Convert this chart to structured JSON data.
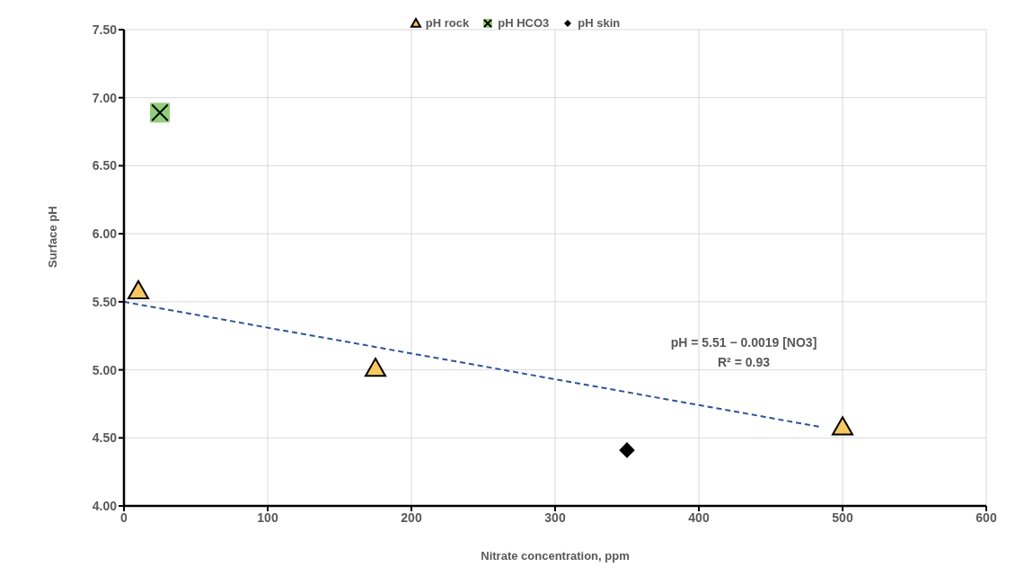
{
  "chart_data": {
    "type": "scatter",
    "xlabel": "Nitrate concentration, ppm",
    "ylabel": "Surface pH",
    "xlim": [
      0,
      600
    ],
    "xticks": [
      0,
      100,
      200,
      300,
      400,
      500,
      600
    ],
    "ylim": [
      4,
      7.5
    ],
    "yticks": [
      {
        "value": 4,
        "label": "4.00"
      },
      {
        "value": 4.5,
        "label": "4.50"
      },
      {
        "value": 5,
        "label": "5.00"
      },
      {
        "value": 5.5,
        "label": "5.50"
      },
      {
        "value": 6,
        "label": "6.00"
      },
      {
        "value": 6.5,
        "label": "6.50"
      },
      {
        "value": 7,
        "label": "7.00"
      },
      {
        "value": 7.5,
        "label": "7.50"
      }
    ],
    "grid": true,
    "legend": "top",
    "series": [
      {
        "name": "pH rock",
        "color": "#f6c85f",
        "marker": "triangle",
        "x": [
          10,
          175,
          500
        ],
        "values": [
          5.58,
          5.01,
          4.58
        ]
      },
      {
        "name": "pH  HCO3",
        "color": "#8fcf7a",
        "marker": "square",
        "x": [
          25
        ],
        "values": [
          6.89
        ]
      },
      {
        "name": "pH skin",
        "color": "#000000",
        "marker": "diamond",
        "x": [
          350
        ],
        "values": [
          4.41
        ]
      },
      {
        "type": "line",
        "color": "#2f5597",
        "line_style": "dashed",
        "marker": "none",
        "x": [
          0,
          485
        ],
        "values": [
          5.5,
          4.58
        ]
      }
    ],
    "annotations": [
      "pH = 5.51 − 0.0019 [NO3]",
      "R² = 0.93"
    ]
  }
}
